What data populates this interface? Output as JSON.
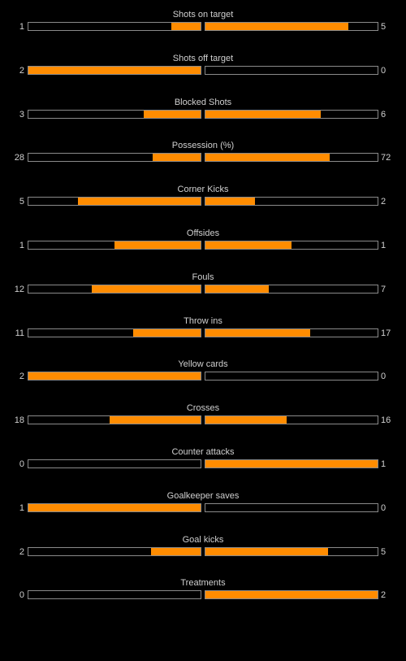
{
  "colors": {
    "background": "#000000",
    "bar_fill": "#ff8c00",
    "bar_border": "#8a8a8a",
    "text": "#d0d0d0"
  },
  "stats": [
    {
      "label": "Shots on target",
      "home": "1",
      "away": "5",
      "home_fill": 0.17,
      "away_fill": 0.83
    },
    {
      "label": "Shots off target",
      "home": "2",
      "away": "0",
      "home_fill": 1.0,
      "away_fill": 0.0
    },
    {
      "label": "Blocked Shots",
      "home": "3",
      "away": "6",
      "home_fill": 0.33,
      "away_fill": 0.67
    },
    {
      "label": "Possession (%)",
      "home": "28",
      "away": "72",
      "home_fill": 0.28,
      "away_fill": 0.72
    },
    {
      "label": "Corner Kicks",
      "home": "5",
      "away": "2",
      "home_fill": 0.71,
      "away_fill": 0.29
    },
    {
      "label": "Offsides",
      "home": "1",
      "away": "1",
      "home_fill": 0.5,
      "away_fill": 0.5
    },
    {
      "label": "Fouls",
      "home": "12",
      "away": "7",
      "home_fill": 0.63,
      "away_fill": 0.37
    },
    {
      "label": "Throw ins",
      "home": "11",
      "away": "17",
      "home_fill": 0.39,
      "away_fill": 0.61
    },
    {
      "label": "Yellow cards",
      "home": "2",
      "away": "0",
      "home_fill": 1.0,
      "away_fill": 0.0
    },
    {
      "label": "Crosses",
      "home": "18",
      "away": "16",
      "home_fill": 0.53,
      "away_fill": 0.47
    },
    {
      "label": "Counter attacks",
      "home": "0",
      "away": "1",
      "home_fill": 0.0,
      "away_fill": 1.0
    },
    {
      "label": "Goalkeeper saves",
      "home": "1",
      "away": "0",
      "home_fill": 1.0,
      "away_fill": 0.0
    },
    {
      "label": "Goal kicks",
      "home": "2",
      "away": "5",
      "home_fill": 0.29,
      "away_fill": 0.71
    },
    {
      "label": "Treatments",
      "home": "0",
      "away": "2",
      "home_fill": 0.0,
      "away_fill": 1.0
    }
  ]
}
